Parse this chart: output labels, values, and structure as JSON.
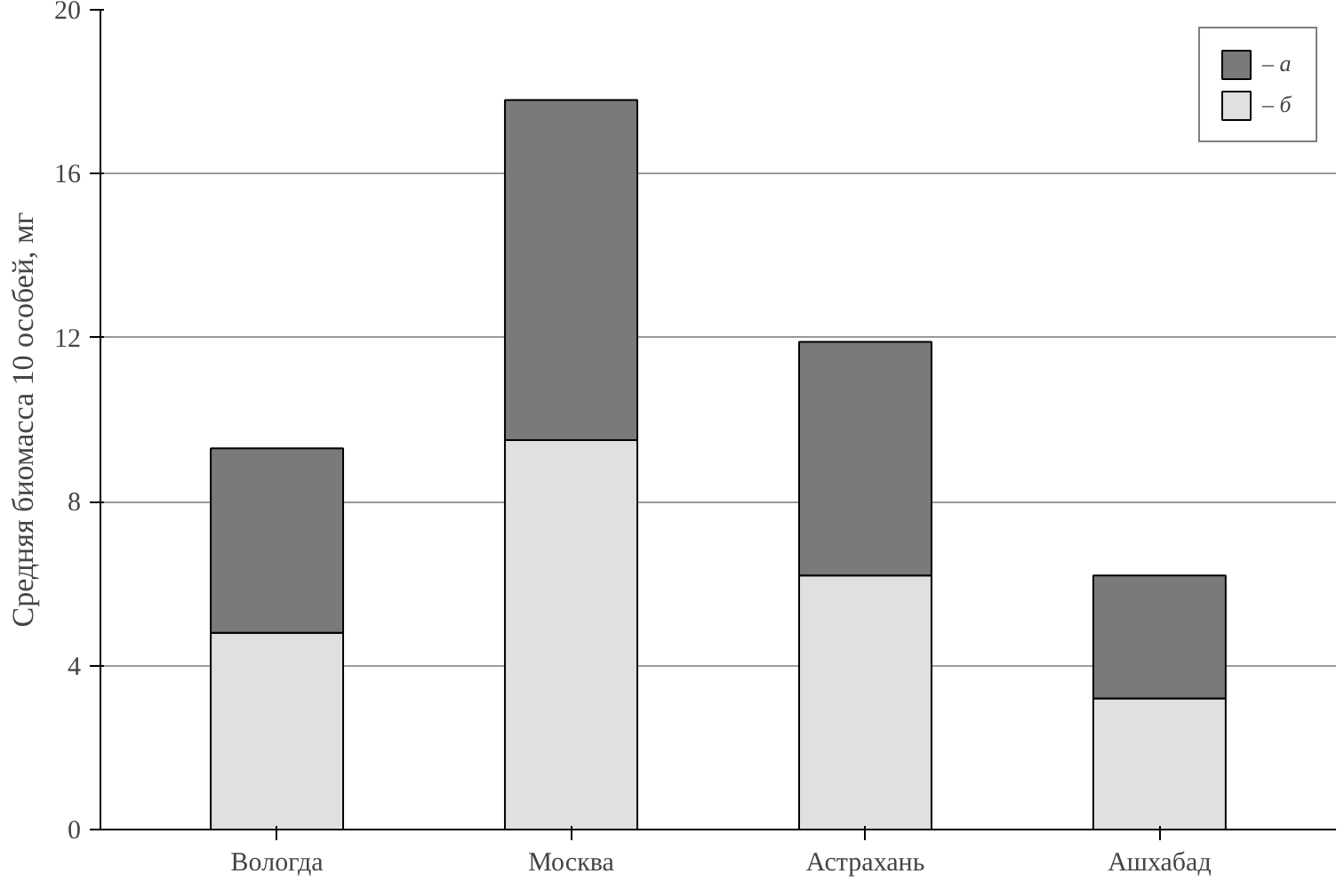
{
  "chart_data": {
    "type": "bar",
    "stacked": true,
    "ylabel": "Средняя биомасса 10 особей, мг",
    "categories": [
      "Вологда",
      "Москва",
      "Астрахань",
      "Ашхабад"
    ],
    "series": [
      {
        "name": "– б",
        "color": "#e0e0e0",
        "values": [
          4.8,
          9.5,
          6.2,
          3.2
        ]
      },
      {
        "name": "– а",
        "color": "#7a7a7a",
        "values": [
          4.5,
          8.3,
          5.7,
          3.0
        ]
      }
    ],
    "ylim": [
      0,
      20
    ],
    "yticks": [
      0,
      4,
      8,
      12,
      16,
      20
    ],
    "grid": "y",
    "legend": "top right"
  }
}
